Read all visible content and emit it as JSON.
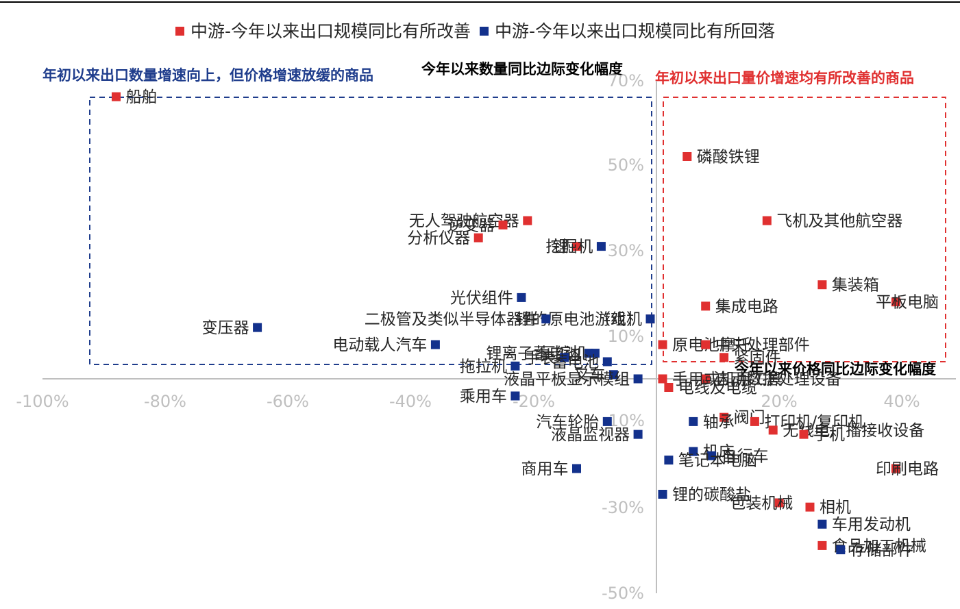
{
  "colors": {
    "improved": "#e03030",
    "fallen": "#13318c",
    "axis": "#bfbfbf",
    "topline": "#000000"
  },
  "chart_data": {
    "type": "scatter",
    "xlabel": "今年以来价格同比边际变化幅度",
    "ylabel": "今年以来数量同比边际变化幅度",
    "xlim": [
      -100,
      48
    ],
    "ylim": [
      -50,
      70
    ],
    "x_ticks": [
      "-100%",
      "-80%",
      "-60%",
      "-40%",
      "-20%",
      "-10%",
      "20%",
      "40%"
    ],
    "y_ticks": [
      "70%",
      "50%",
      "30%",
      "10%",
      "-30%",
      "-50%"
    ],
    "legend_position": "top",
    "series": [
      {
        "name": "中游-今年以来出口规模同比有所改善",
        "points": [
          {
            "label": "船舶",
            "x": -88,
            "y": 66
          },
          {
            "label": "无人驾驶航空器",
            "x": -21,
            "y": 37
          },
          {
            "label": "逆变器",
            "x": -25,
            "y": 36
          },
          {
            "label": "分析仪器",
            "x": -29,
            "y": 33
          },
          {
            "label": "锂",
            "x": -13,
            "y": 31
          },
          {
            "label": "磷酸铁锂",
            "x": 5,
            "y": 52
          },
          {
            "label": "飞机及其他航空器",
            "x": 18,
            "y": 37
          },
          {
            "label": "集装箱",
            "x": 27,
            "y": 22
          },
          {
            "label": "平板电脑",
            "x": 39,
            "y": 18
          },
          {
            "label": "集成电路",
            "x": 8,
            "y": 17
          },
          {
            "label": "锂的原电池（组）",
            "x": -1,
            "y": 14
          },
          {
            "label": "原电池摩托...",
            "x": 1,
            "y": 8
          },
          {
            "label": "中央处理部件",
            "x": 8,
            "y": 8
          },
          {
            "label": "紧固件",
            "x": 11,
            "y": 5
          },
          {
            "label": "自动数据处理设备",
            "x": 8,
            "y": 0
          },
          {
            "label": "电线及电缆",
            "x": 2,
            "y": -2
          },
          {
            "label": "手用或机用工具",
            "x": 1,
            "y": 0
          },
          {
            "label": "阀门",
            "x": 11,
            "y": -9
          },
          {
            "label": "打印机/复印机",
            "x": 16,
            "y": -10
          },
          {
            "label": "无线电广播接收设备",
            "x": 19,
            "y": -12
          },
          {
            "label": "手机",
            "x": 24,
            "y": -13
          },
          {
            "label": "印刷电路",
            "x": 39,
            "y": -21
          },
          {
            "label": "包装机械",
            "x": 20,
            "y": -29
          },
          {
            "label": "相机",
            "x": 25,
            "y": -30
          },
          {
            "label": "食品加工机械",
            "x": 27,
            "y": -39
          }
        ]
      },
      {
        "name": "中游-今年以来出口规模同比有所回落",
        "points": [
          {
            "label": "挖掘机",
            "x": -9,
            "y": 31
          },
          {
            "label": "光伏组件",
            "x": -22,
            "y": 19
          },
          {
            "label": "二极管及类似半导体器件",
            "x": -18,
            "y": 14
          },
          {
            "label": "变压器",
            "x": -65,
            "y": 12
          },
          {
            "label": "电动载人汽车",
            "x": -36,
            "y": 8
          },
          {
            "label": "锂离子蓄电池",
            "x": -11,
            "y": 6
          },
          {
            "label": "游戏机",
            "x": -1,
            "y": 14
          },
          {
            "label": "压缩机",
            "x": -10,
            "y": 6
          },
          {
            "label": "手表",
            "x": -15,
            "y": 5
          },
          {
            "label": "拖拉机",
            "x": -23,
            "y": 3
          },
          {
            "label": "蓄电池",
            "x": -8,
            "y": 4
          },
          {
            "label": "叉车",
            "x": -7,
            "y": 1
          },
          {
            "label": "液晶平板显示模组",
            "x": -3,
            "y": 0
          },
          {
            "label": "乘用车",
            "x": -23,
            "y": -4
          },
          {
            "label": "汽车轮胎",
            "x": -8,
            "y": -10
          },
          {
            "label": "轴承",
            "x": 6,
            "y": -10
          },
          {
            "label": "液晶监视器",
            "x": -3,
            "y": -13
          },
          {
            "label": "机床",
            "x": 6,
            "y": -17
          },
          {
            "label": "自行车",
            "x": 9,
            "y": -18
          },
          {
            "label": "商用车",
            "x": -13,
            "y": -21
          },
          {
            "label": "笔记本电脑",
            "x": 2,
            "y": -19
          },
          {
            "label": "锂的碳酸盐",
            "x": 1,
            "y": -27
          },
          {
            "label": "车用发动机",
            "x": 27,
            "y": -34
          },
          {
            "label": "存储部件",
            "x": 30,
            "y": -40
          }
        ]
      }
    ],
    "annotations": [
      {
        "text": "年初以来出口数量增速向上，但价格增速放缓的商品",
        "color": "#1f3d8c"
      },
      {
        "text": "年初以来出口量价增速均有所改善的商品",
        "color": "#e03030"
      }
    ]
  }
}
